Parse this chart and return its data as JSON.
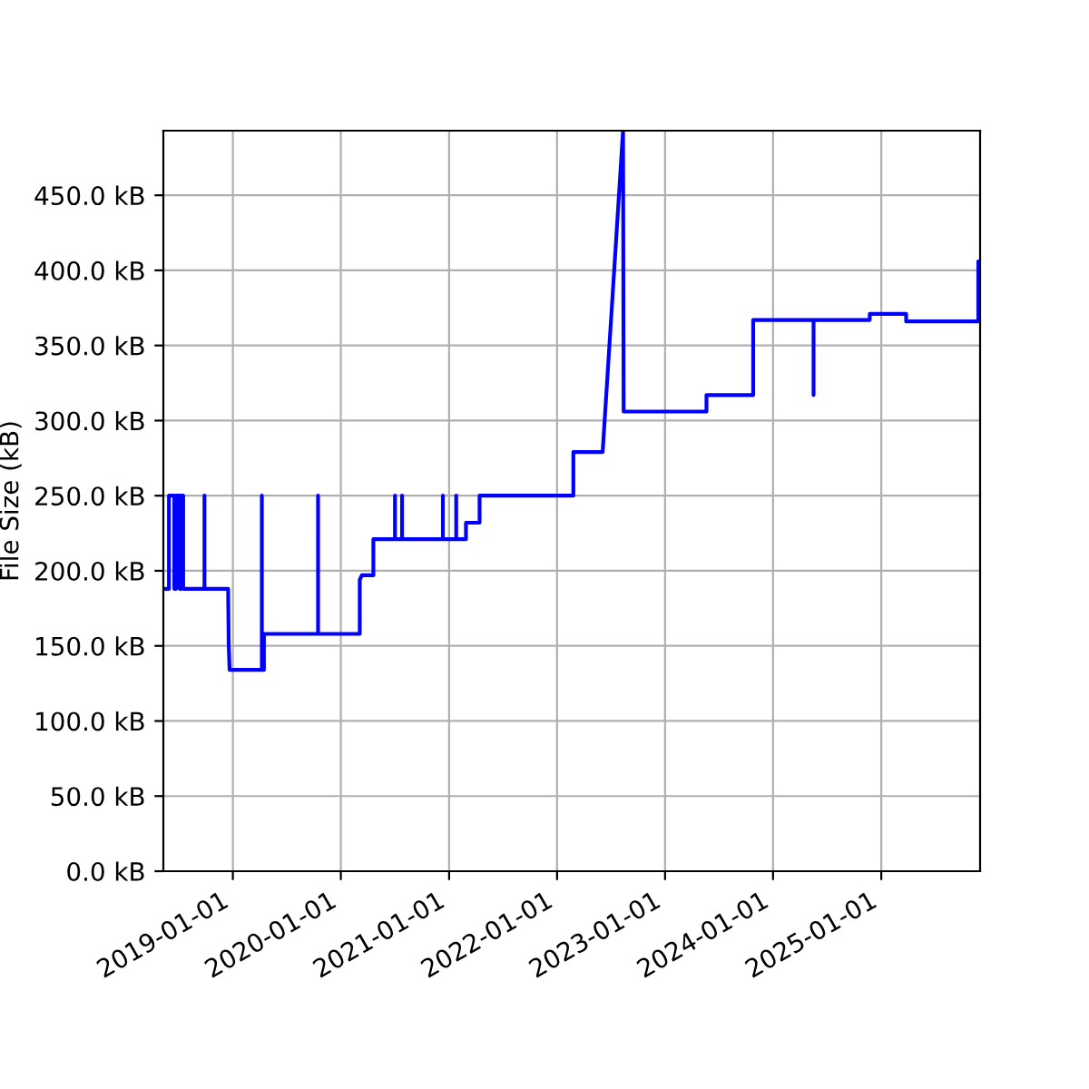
{
  "chart_data": {
    "type": "line",
    "ylabel": "File Size (kB)",
    "x": [
      "2018-05-11",
      "2018-05-30",
      "2018-05-30",
      "2018-06-17",
      "2018-06-17",
      "2018-06-23",
      "2018-06-23",
      "2018-07-05",
      "2018-07-05",
      "2018-07-11",
      "2018-07-11",
      "2018-07-17",
      "2018-07-17",
      "2018-09-27",
      "2018-09-27",
      "2018-09-27",
      "2018-12-16",
      "2018-12-18",
      "2018-12-21",
      "2019-04-09",
      "2019-04-09",
      "2019-04-09",
      "2019-04-16",
      "2019-04-16",
      "2019-10-16",
      "2019-10-16",
      "2019-10-16",
      "2020-03-05",
      "2020-03-05",
      "2020-03-12",
      "2020-04-20",
      "2020-04-20",
      "2020-07-02",
      "2020-07-02",
      "2020-07-02",
      "2020-07-26",
      "2020-07-26",
      "2020-07-26",
      "2020-12-11",
      "2020-12-11",
      "2020-12-11",
      "2021-01-25",
      "2021-01-25",
      "2021-01-25",
      "2021-02-27",
      "2021-02-27",
      "2021-04-14",
      "2021-04-14",
      "2022-02-25",
      "2022-02-25",
      "2022-06-04",
      "2022-08-12",
      "2022-08-14",
      "2023-05-21",
      "2023-05-21",
      "2023-10-26",
      "2023-10-26",
      "2024-05-17",
      "2024-05-17",
      "2024-05-17",
      "2024-11-23",
      "2024-11-23",
      "2025-03-26",
      "2025-03-26",
      "2025-11-25",
      "2025-11-25",
      "2025-12-01"
    ],
    "series": [
      {
        "color": "#0000ff",
        "values": [
          188,
          188,
          250,
          250,
          188,
          188,
          250,
          250,
          188,
          188,
          250,
          250,
          188,
          188,
          250,
          188,
          188,
          151,
          134,
          134,
          250,
          134,
          134,
          158,
          158,
          250,
          158,
          158,
          194,
          197,
          197,
          221,
          221,
          250,
          221,
          221,
          250,
          221,
          221,
          250,
          221,
          221,
          250,
          221,
          221,
          232,
          232,
          250,
          250,
          279,
          279,
          493,
          306,
          306,
          317,
          317,
          367,
          367,
          317,
          367,
          367,
          371,
          371,
          366,
          366,
          406,
          406
        ]
      }
    ],
    "xlim": [
      "2018-05-11",
      "2025-12-01"
    ],
    "xticks": [
      "2019-01-01",
      "2020-01-01",
      "2021-01-01",
      "2022-01-01",
      "2023-01-01",
      "2024-01-01",
      "2025-01-01"
    ],
    "ylim": [
      0,
      493
    ],
    "yticks": [
      {
        "value": 0,
        "label": "0.0 kB"
      },
      {
        "value": 50,
        "label": "50.0 kB"
      },
      {
        "value": 100,
        "label": "100.0 kB"
      },
      {
        "value": 150,
        "label": "150.0 kB"
      },
      {
        "value": 200,
        "label": "200.0 kB"
      },
      {
        "value": 250,
        "label": "250.0 kB"
      },
      {
        "value": 300,
        "label": "300.0 kB"
      },
      {
        "value": 350,
        "label": "350.0 kB"
      },
      {
        "value": 400,
        "label": "400.0 kB"
      },
      {
        "value": 450,
        "label": "450.0 kB"
      }
    ],
    "grid": true,
    "marker": "none",
    "line_style": "solid"
  }
}
